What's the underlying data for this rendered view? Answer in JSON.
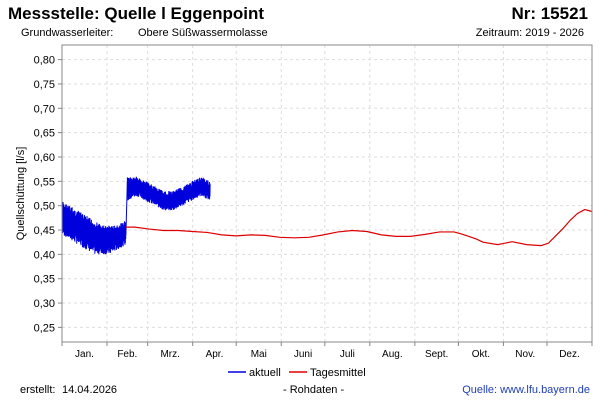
{
  "header": {
    "title": "Messstelle: Quelle l Eggenpoint",
    "number": "Nr: 15521",
    "aquifer_label": "Grundwasserleiter:",
    "aquifer_value": "Obere Süßwassermolasse",
    "period": "Zeitraum: 2019 - 2026"
  },
  "chart_data": {
    "type": "line",
    "ylabel": "Quellschüttung [l/s]",
    "ylim": [
      0.22,
      0.83
    ],
    "xlim": [
      0,
      365
    ],
    "y_ticks": [
      "0,25",
      "0,30",
      "0,35",
      "0,40",
      "0,45",
      "0,50",
      "0,55",
      "0,60",
      "0,65",
      "0,70",
      "0,75",
      "0,80"
    ],
    "y_tick_values": [
      0.25,
      0.3,
      0.35,
      0.4,
      0.45,
      0.5,
      0.55,
      0.6,
      0.65,
      0.7,
      0.75,
      0.8
    ],
    "month_starts": [
      0,
      31,
      59,
      90,
      120,
      151,
      181,
      212,
      243,
      273,
      304,
      334,
      365
    ],
    "month_labels": [
      "Jan.",
      "Feb.",
      "Mrz.",
      "Apr.",
      "Mai",
      "Juni",
      "Juli",
      "Aug.",
      "Sept.",
      "Okt.",
      "Nov.",
      "Dez."
    ],
    "grid": true,
    "legend_position": "bottom-center",
    "series": [
      {
        "name": "aktuell",
        "color": "#0000dd",
        "style": "high-frequency band",
        "segments": [
          {
            "from_day": 0,
            "to_day": 44,
            "low": [
              0.44,
              0.43,
              0.42,
              0.41,
              0.4,
              0.4,
              0.4,
              0.41,
              0.42
            ],
            "high": [
              0.51,
              0.5,
              0.49,
              0.48,
              0.47,
              0.46,
              0.46,
              0.46,
              0.47
            ]
          },
          {
            "from_day": 45,
            "to_day": 102,
            "low": [
              0.51,
              0.52,
              0.51,
              0.5,
              0.49,
              0.49,
              0.5,
              0.51,
              0.52,
              0.51
            ],
            "high": [
              0.56,
              0.56,
              0.55,
              0.54,
              0.53,
              0.53,
              0.54,
              0.55,
              0.56,
              0.55
            ]
          }
        ]
      },
      {
        "name": "Tagesmittel",
        "color": "#dd0000",
        "x": [
          44,
          50,
          60,
          70,
          80,
          90,
          100,
          110,
          120,
          130,
          140,
          150,
          160,
          170,
          180,
          190,
          200,
          210,
          220,
          230,
          240,
          250,
          260,
          270,
          275,
          280,
          285,
          290,
          300,
          305,
          310,
          320,
          325,
          330,
          335,
          340,
          345,
          350,
          355,
          360,
          365
        ],
        "y": [
          0.456,
          0.456,
          0.452,
          0.449,
          0.449,
          0.447,
          0.445,
          0.44,
          0.438,
          0.44,
          0.439,
          0.435,
          0.434,
          0.435,
          0.44,
          0.446,
          0.449,
          0.447,
          0.44,
          0.437,
          0.437,
          0.441,
          0.446,
          0.446,
          0.442,
          0.437,
          0.432,
          0.425,
          0.42,
          0.423,
          0.426,
          0.42,
          0.419,
          0.418,
          0.423,
          0.438,
          0.453,
          0.47,
          0.484,
          0.492,
          0.488
        ]
      }
    ]
  },
  "footer": {
    "created_label": "erstellt:",
    "created_date": "14.04.2026",
    "rawdata": "- Rohdaten -",
    "source": "Quelle: www.lfu.bayern.de"
  }
}
